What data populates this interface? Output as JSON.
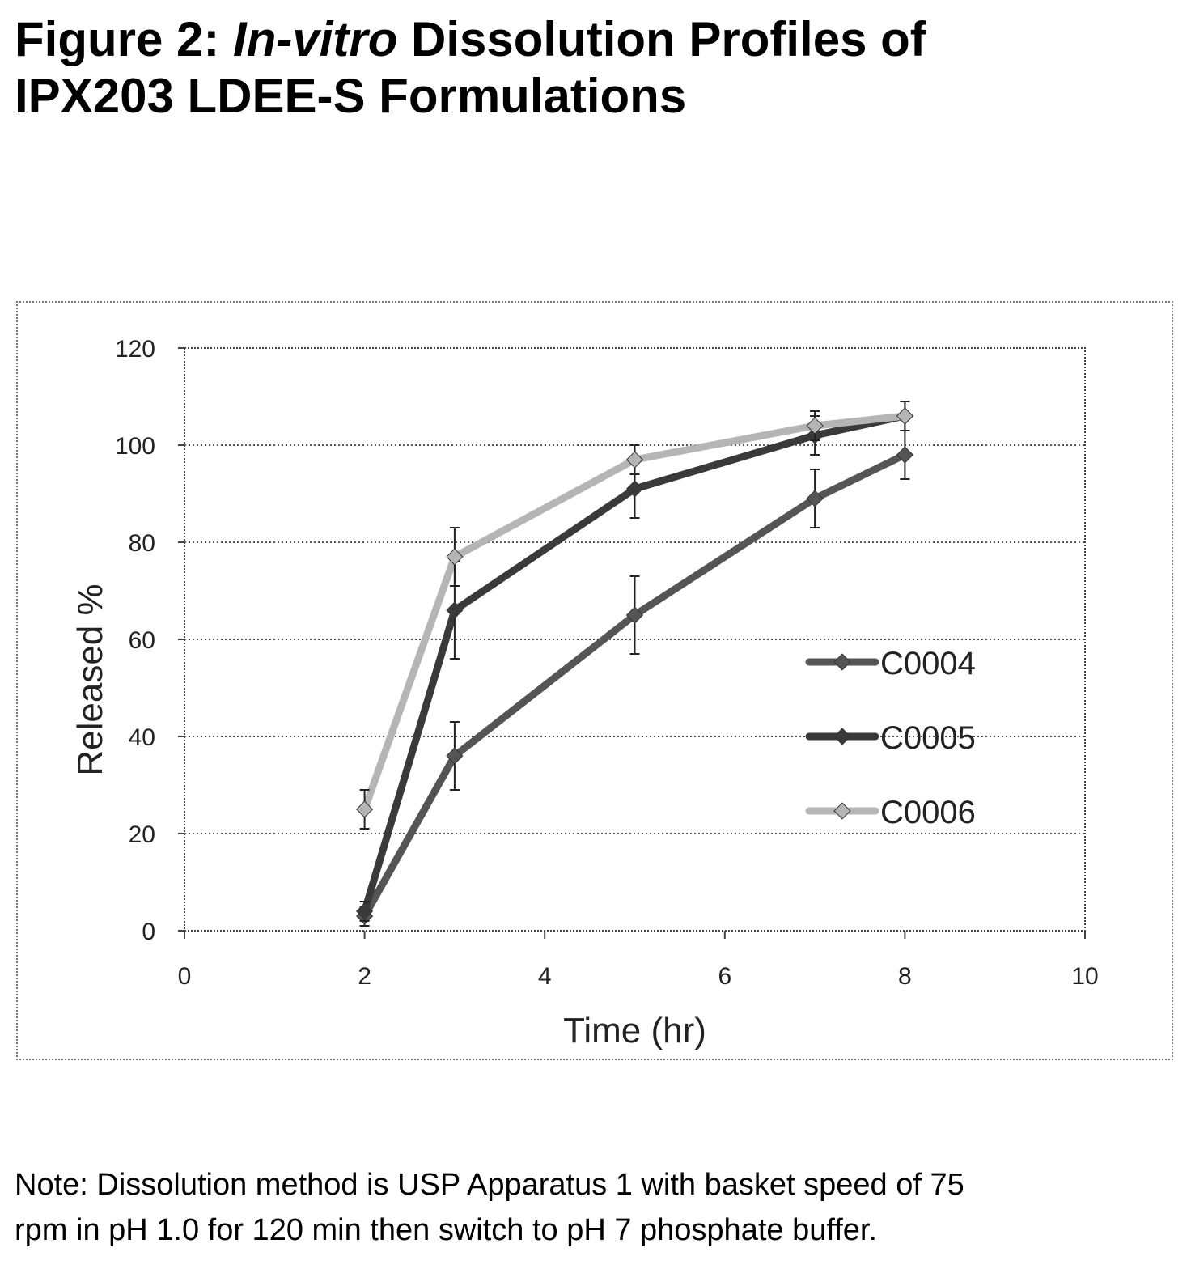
{
  "title": {
    "prefix": "Figure 2: ",
    "italic": "In-vitro",
    "suffix_line1": " Dissolution Profiles of",
    "line2": "IPX203 LDEE-S Formulations"
  },
  "note": {
    "line1": "Note:  Dissolution method is USP Apparatus 1 with basket speed of 75",
    "line2": "rpm in pH 1.0 for 120 min then switch to pH 7 phosphate buffer."
  },
  "chart_data": {
    "type": "line",
    "xlabel": "Time (hr)",
    "ylabel": "Released %",
    "xlim": [
      0,
      10
    ],
    "ylim": [
      0,
      120
    ],
    "xticks": [
      0,
      2,
      4,
      6,
      8,
      10
    ],
    "yticks": [
      0,
      20,
      40,
      60,
      80,
      100,
      120
    ],
    "grid": "horizontal dotted",
    "legend_position": "right",
    "series": [
      {
        "name": "C0004",
        "x": [
          2,
          3,
          5,
          7,
          8
        ],
        "y": [
          3,
          36,
          65,
          89,
          98
        ],
        "err": [
          2,
          7,
          8,
          6,
          5
        ],
        "color": "#555555"
      },
      {
        "name": "C0005",
        "x": [
          2,
          3,
          5,
          7,
          8
        ],
        "y": [
          4,
          66,
          91,
          102,
          106
        ],
        "err": [
          2,
          10,
          6,
          4,
          3
        ],
        "color": "#3a3a3a"
      },
      {
        "name": "C0006",
        "x": [
          2,
          3,
          5,
          7,
          8
        ],
        "y": [
          25,
          77,
          97,
          104,
          106
        ],
        "err": [
          4,
          6,
          3,
          3,
          3
        ],
        "color": "#b5b5b5"
      }
    ]
  }
}
